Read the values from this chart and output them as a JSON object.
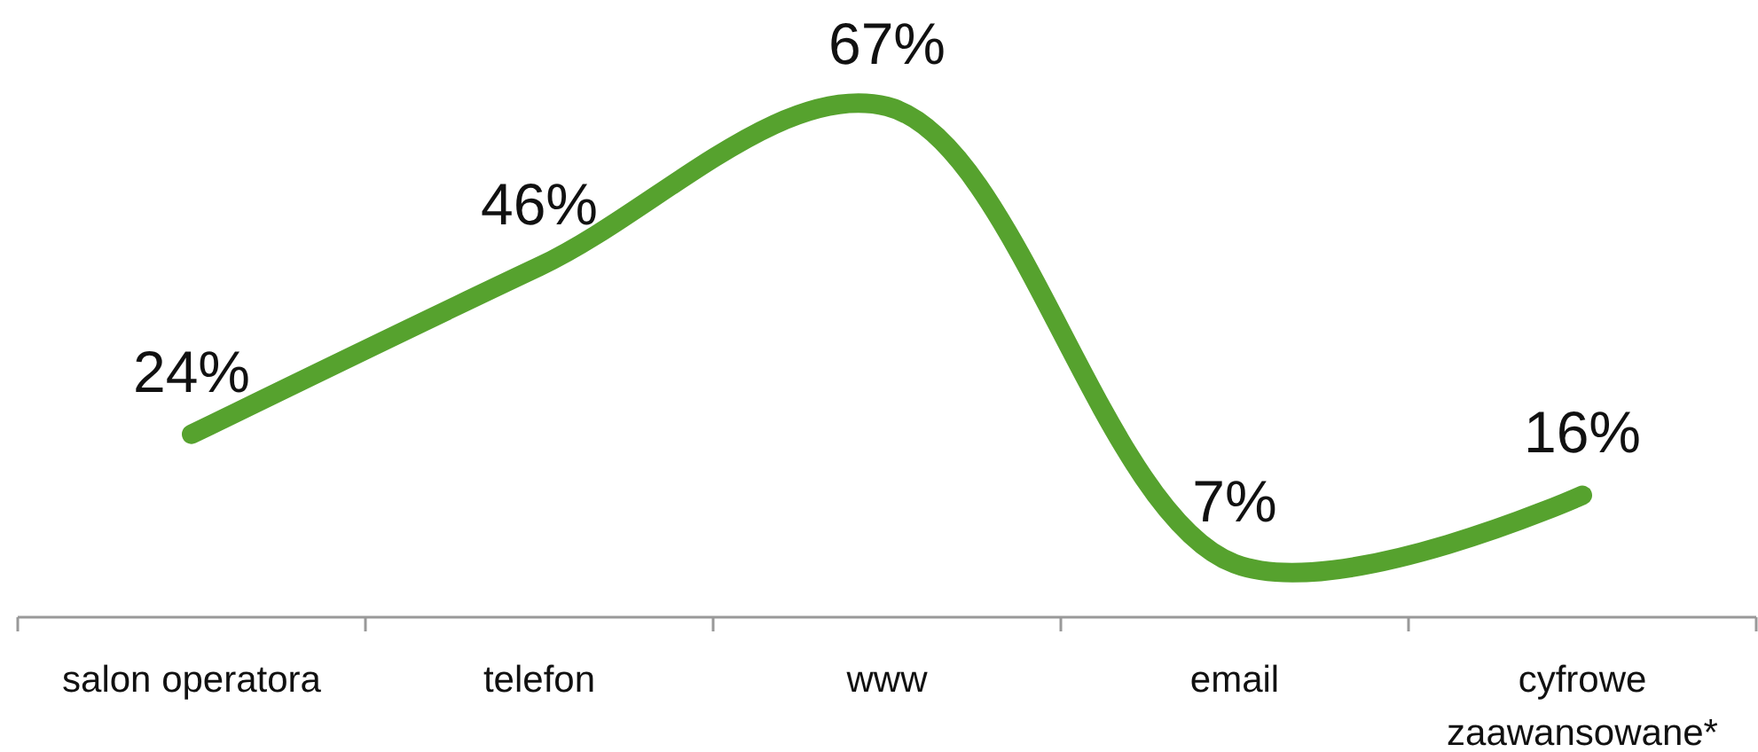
{
  "chart_data": {
    "type": "line",
    "categories": [
      "salon operatora",
      "telefon",
      "www",
      "email",
      "cyfrowe zaawansowane*"
    ],
    "series": [
      {
        "color": "#56a22e",
        "values": [
          24,
          46,
          67,
          7,
          16
        ],
        "value_labels": [
          "24%",
          "46%",
          "67%",
          "7%",
          "16%"
        ]
      }
    ],
    "grid": false,
    "marker": "none",
    "line_style": "solid"
  }
}
